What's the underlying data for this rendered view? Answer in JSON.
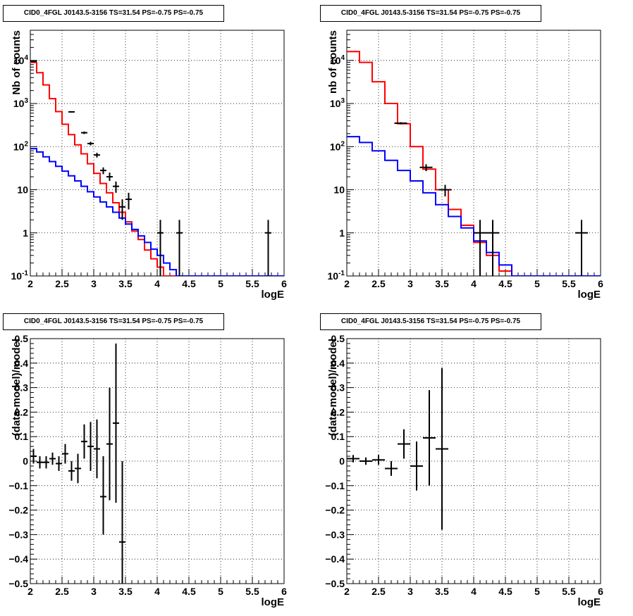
{
  "chart_data": [
    {
      "type": "line",
      "title": "CID0_4FGL J0143.5-3156 TS=31.54 PS=-0.75 PS=-0.75",
      "xlabel": "logE",
      "ylabel": "Nb of counts",
      "yscale": "log",
      "xlim": [
        2,
        6
      ],
      "ylim": [
        0.1,
        50000
      ],
      "grid": true,
      "x_ticks": [
        "2",
        "2.5",
        "3",
        "3.5",
        "4",
        "4.5",
        "5",
        "5.5",
        "6"
      ],
      "y_ticks": [
        {
          "value": 0.1,
          "label": "10",
          "exp": "-1"
        },
        {
          "value": 1,
          "label": "1",
          "exp": ""
        },
        {
          "value": 10,
          "label": "10",
          "exp": ""
        },
        {
          "value": 100,
          "label": "10",
          "exp": "2"
        },
        {
          "value": 1000,
          "label": "10",
          "exp": "3"
        },
        {
          "value": 10000,
          "label": "10",
          "exp": "4"
        }
      ],
      "bin_edges": [
        2.0,
        2.1,
        2.2,
        2.3,
        2.4,
        2.5,
        2.6,
        2.7,
        2.8,
        2.9,
        3.0,
        3.1,
        3.2,
        3.3,
        3.4,
        3.5,
        3.6,
        3.7,
        3.8,
        3.9,
        4.0,
        4.1,
        4.2,
        4.3,
        4.4,
        4.5,
        4.6,
        4.7,
        4.8,
        4.9,
        5.0,
        5.1,
        5.2,
        5.3,
        5.4,
        5.5,
        5.6,
        5.7,
        5.8,
        5.9,
        6.0
      ],
      "series": [
        {
          "color": "#ff0000",
          "style": "step",
          "values": [
            9000,
            5200,
            2700,
            1300,
            650,
            330,
            190,
            110,
            68,
            40,
            24,
            14,
            8.5,
            5,
            3,
            1.8,
            1.1,
            0.7,
            0.4,
            0.25,
            0.16,
            0.1,
            0.1,
            0.1,
            0.1,
            0.1,
            0.1,
            0.1,
            0.1,
            0.1,
            0.1,
            0.1,
            0.1,
            0.1,
            0.1,
            0.1,
            0.1,
            0.1,
            0.1,
            0.1
          ]
        },
        {
          "color": "#0000ff",
          "style": "step",
          "values": [
            90,
            75,
            58,
            45,
            35,
            27,
            21,
            16,
            12,
            9,
            6.8,
            5.2,
            4,
            3,
            2.2,
            1.6,
            1.2,
            0.85,
            0.6,
            0.42,
            0.3,
            0.2,
            0.14,
            0.1,
            0.1,
            0.1,
            0.1,
            0.1,
            0.1,
            0.1,
            0.1,
            0.1,
            0.1,
            0.1,
            0.1,
            0.1,
            0.1,
            0.1,
            0.1,
            0.1
          ]
        },
        {
          "color": "#000000",
          "style": "errorbars",
          "points": [
            {
              "x": 2.05,
              "y": 9500,
              "xerr": 0.05,
              "ylo": 9400,
              "yhi": 9600
            },
            {
              "x": 2.65,
              "y": 640,
              "xerr": 0.05,
              "ylo": 615,
              "yhi": 665
            },
            {
              "x": 2.85,
              "y": 210,
              "xerr": 0.05,
              "ylo": 196,
              "yhi": 224
            },
            {
              "x": 2.95,
              "y": 118,
              "xerr": 0.05,
              "ylo": 107,
              "yhi": 129
            },
            {
              "x": 3.05,
              "y": 64,
              "xerr": 0.05,
              "ylo": 56,
              "yhi": 72
            },
            {
              "x": 3.15,
              "y": 28,
              "xerr": 0.05,
              "ylo": 23,
              "yhi": 33
            },
            {
              "x": 3.25,
              "y": 20,
              "xerr": 0.05,
              "ylo": 16,
              "yhi": 25
            },
            {
              "x": 3.35,
              "y": 12,
              "xerr": 0.05,
              "ylo": 8.5,
              "yhi": 15.5
            },
            {
              "x": 3.45,
              "y": 4,
              "xerr": 0.05,
              "ylo": 2,
              "yhi": 6
            },
            {
              "x": 3.55,
              "y": 6,
              "xerr": 0.05,
              "ylo": 3.5,
              "yhi": 8.5
            },
            {
              "x": 4.05,
              "y": 1,
              "xerr": 0.05,
              "ylo": 0.1,
              "yhi": 2
            },
            {
              "x": 4.35,
              "y": 1,
              "xerr": 0.05,
              "ylo": 0.1,
              "yhi": 2
            },
            {
              "x": 5.75,
              "y": 1,
              "xerr": 0.05,
              "ylo": 0.1,
              "yhi": 2
            }
          ]
        }
      ]
    },
    {
      "type": "line",
      "title": "CID0_4FGL J0143.5-3156 TS=31.54 PS=-0.75 PS=-0.75",
      "xlabel": "logE",
      "ylabel": "nb of counts",
      "yscale": "log",
      "xlim": [
        2,
        6
      ],
      "ylim": [
        0.1,
        50000
      ],
      "grid": true,
      "x_ticks": [
        "2",
        "2.5",
        "3",
        "3.5",
        "4",
        "4.5",
        "5",
        "5.5",
        "6"
      ],
      "y_ticks": [
        {
          "value": 0.1,
          "label": "10",
          "exp": "-1"
        },
        {
          "value": 1,
          "label": "1",
          "exp": ""
        },
        {
          "value": 10,
          "label": "10",
          "exp": ""
        },
        {
          "value": 100,
          "label": "10",
          "exp": "2"
        },
        {
          "value": 1000,
          "label": "10",
          "exp": "3"
        },
        {
          "value": 10000,
          "label": "10",
          "exp": "4"
        }
      ],
      "bin_edges": [
        2.0,
        2.2,
        2.4,
        2.6,
        2.8,
        3.0,
        3.2,
        3.4,
        3.6,
        3.8,
        4.0,
        4.2,
        4.4,
        4.6,
        4.8,
        5.0,
        5.2,
        5.4,
        5.6,
        5.8,
        6.0
      ],
      "series": [
        {
          "color": "#ff0000",
          "style": "step",
          "values": [
            16000,
            9000,
            3200,
            1000,
            340,
            100,
            30,
            10,
            3.5,
            1.5,
            0.6,
            0.3,
            0.13,
            0.1,
            0.1,
            0.1,
            0.1,
            0.1,
            0.1,
            0.1
          ]
        },
        {
          "color": "#0000ff",
          "style": "step",
          "values": [
            170,
            125,
            80,
            48,
            28,
            16,
            8.5,
            4.5,
            2.4,
            1.3,
            0.65,
            0.35,
            0.18,
            0.1,
            0.1,
            0.1,
            0.1,
            0.1,
            0.1,
            0.1
          ]
        },
        {
          "color": "#000000",
          "style": "errorbars",
          "points": [
            {
              "x": 2.85,
              "y": 350,
              "xerr": 0.1,
              "ylo": 330,
              "yhi": 370
            },
            {
              "x": 3.25,
              "y": 33,
              "xerr": 0.1,
              "ylo": 27,
              "yhi": 39
            },
            {
              "x": 3.55,
              "y": 10,
              "xerr": 0.1,
              "ylo": 7,
              "yhi": 13
            },
            {
              "x": 4.1,
              "y": 1,
              "xerr": 0.1,
              "ylo": 0.1,
              "yhi": 2
            },
            {
              "x": 4.3,
              "y": 1,
              "xerr": 0.1,
              "ylo": 0.1,
              "yhi": 2
            },
            {
              "x": 5.7,
              "y": 1,
              "xerr": 0.1,
              "ylo": 0.1,
              "yhi": 2
            }
          ]
        }
      ]
    },
    {
      "type": "scatter",
      "title": "CID0_4FGL J0143.5-3156 TS=31.54 PS=-0.75 PS=-0.75",
      "xlabel": "logE",
      "ylabel": "(data-model)/model",
      "yscale": "linear",
      "xlim": [
        2,
        6
      ],
      "ylim": [
        -0.5,
        0.5
      ],
      "grid": true,
      "x_ticks": [
        "2",
        "2.5",
        "3",
        "3.5",
        "4",
        "4.5",
        "5",
        "5.5",
        "6"
      ],
      "y_ticks": [
        {
          "value": -0.5,
          "label": "−0.5"
        },
        {
          "value": -0.4,
          "label": "−0.4"
        },
        {
          "value": -0.3,
          "label": "−0.3"
        },
        {
          "value": -0.2,
          "label": "−0.2"
        },
        {
          "value": -0.1,
          "label": "−0.1"
        },
        {
          "value": 0,
          "label": "0"
        },
        {
          "value": 0.1,
          "label": "0.1"
        },
        {
          "value": 0.2,
          "label": "0.2"
        },
        {
          "value": 0.3,
          "label": "0.3"
        },
        {
          "value": 0.4,
          "label": "0.4"
        },
        {
          "value": 0.5,
          "label": "0.5"
        }
      ],
      "series": [
        {
          "color": "#000000",
          "style": "errorbars",
          "points": [
            {
              "x": 2.05,
              "y": 0.02,
              "xerr": 0.05,
              "ylo": -0.01,
              "yhi": 0.05
            },
            {
              "x": 2.15,
              "y": -0.005,
              "xerr": 0.05,
              "ylo": -0.03,
              "yhi": 0.02
            },
            {
              "x": 2.25,
              "y": -0.005,
              "xerr": 0.05,
              "ylo": -0.03,
              "yhi": 0.02
            },
            {
              "x": 2.35,
              "y": 0.01,
              "xerr": 0.05,
              "ylo": -0.015,
              "yhi": 0.035
            },
            {
              "x": 2.45,
              "y": -0.01,
              "xerr": 0.05,
              "ylo": -0.04,
              "yhi": 0.02
            },
            {
              "x": 2.55,
              "y": 0.03,
              "xerr": 0.05,
              "ylo": -0.01,
              "yhi": 0.07
            },
            {
              "x": 2.65,
              "y": -0.04,
              "xerr": 0.05,
              "ylo": -0.08,
              "yhi": 0.0
            },
            {
              "x": 2.75,
              "y": -0.03,
              "xerr": 0.05,
              "ylo": -0.09,
              "yhi": 0.03
            },
            {
              "x": 2.85,
              "y": 0.08,
              "xerr": 0.05,
              "ylo": 0.01,
              "yhi": 0.15
            },
            {
              "x": 2.95,
              "y": 0.06,
              "xerr": 0.05,
              "ylo": -0.04,
              "yhi": 0.16
            },
            {
              "x": 3.05,
              "y": 0.05,
              "xerr": 0.05,
              "ylo": -0.07,
              "yhi": 0.17
            },
            {
              "x": 3.15,
              "y": -0.145,
              "xerr": 0.05,
              "ylo": -0.3,
              "yhi": 0.02
            },
            {
              "x": 3.25,
              "y": 0.07,
              "xerr": 0.05,
              "ylo": -0.16,
              "yhi": 0.3
            },
            {
              "x": 3.35,
              "y": 0.155,
              "xerr": 0.05,
              "ylo": -0.17,
              "yhi": 0.48
            },
            {
              "x": 3.45,
              "y": -0.33,
              "xerr": 0.05,
              "ylo": -0.66,
              "yhi": 0.0
            }
          ]
        }
      ]
    },
    {
      "type": "scatter",
      "title": "CID0_4FGL J0143.5-3156 TS=31.54 PS=-0.75 PS=-0.75",
      "xlabel": "logE",
      "ylabel": "(data-model)/model",
      "yscale": "linear",
      "xlim": [
        2,
        6
      ],
      "ylim": [
        -0.5,
        0.5
      ],
      "grid": true,
      "x_ticks": [
        "2",
        "2.5",
        "3",
        "3.5",
        "4",
        "4.5",
        "5",
        "5.5",
        "6"
      ],
      "y_ticks": [
        {
          "value": -0.5,
          "label": "−0.5"
        },
        {
          "value": -0.4,
          "label": "−0.4"
        },
        {
          "value": -0.3,
          "label": "−0.3"
        },
        {
          "value": -0.2,
          "label": "−0.2"
        },
        {
          "value": -0.1,
          "label": "−0.1"
        },
        {
          "value": 0,
          "label": "0"
        },
        {
          "value": 0.1,
          "label": "0.1"
        },
        {
          "value": 0.2,
          "label": "0.2"
        },
        {
          "value": 0.3,
          "label": "0.3"
        },
        {
          "value": 0.4,
          "label": "0.4"
        },
        {
          "value": 0.5,
          "label": "0.5"
        }
      ],
      "series": [
        {
          "color": "#000000",
          "style": "errorbars",
          "points": [
            {
              "x": 2.1,
              "y": 0.01,
              "xerr": 0.1,
              "ylo": -0.005,
              "yhi": 0.025
            },
            {
              "x": 2.3,
              "y": 0.0,
              "xerr": 0.1,
              "ylo": -0.015,
              "yhi": 0.015
            },
            {
              "x": 2.5,
              "y": 0.005,
              "xerr": 0.1,
              "ylo": -0.015,
              "yhi": 0.025
            },
            {
              "x": 2.7,
              "y": -0.03,
              "xerr": 0.1,
              "ylo": -0.06,
              "yhi": 0.0
            },
            {
              "x": 2.9,
              "y": 0.07,
              "xerr": 0.1,
              "ylo": 0.01,
              "yhi": 0.13
            },
            {
              "x": 3.1,
              "y": -0.02,
              "xerr": 0.1,
              "ylo": -0.12,
              "yhi": 0.08
            },
            {
              "x": 3.3,
              "y": 0.095,
              "xerr": 0.1,
              "ylo": -0.1,
              "yhi": 0.29
            },
            {
              "x": 3.5,
              "y": 0.05,
              "xerr": 0.1,
              "ylo": -0.28,
              "yhi": 0.38
            }
          ]
        }
      ]
    }
  ]
}
